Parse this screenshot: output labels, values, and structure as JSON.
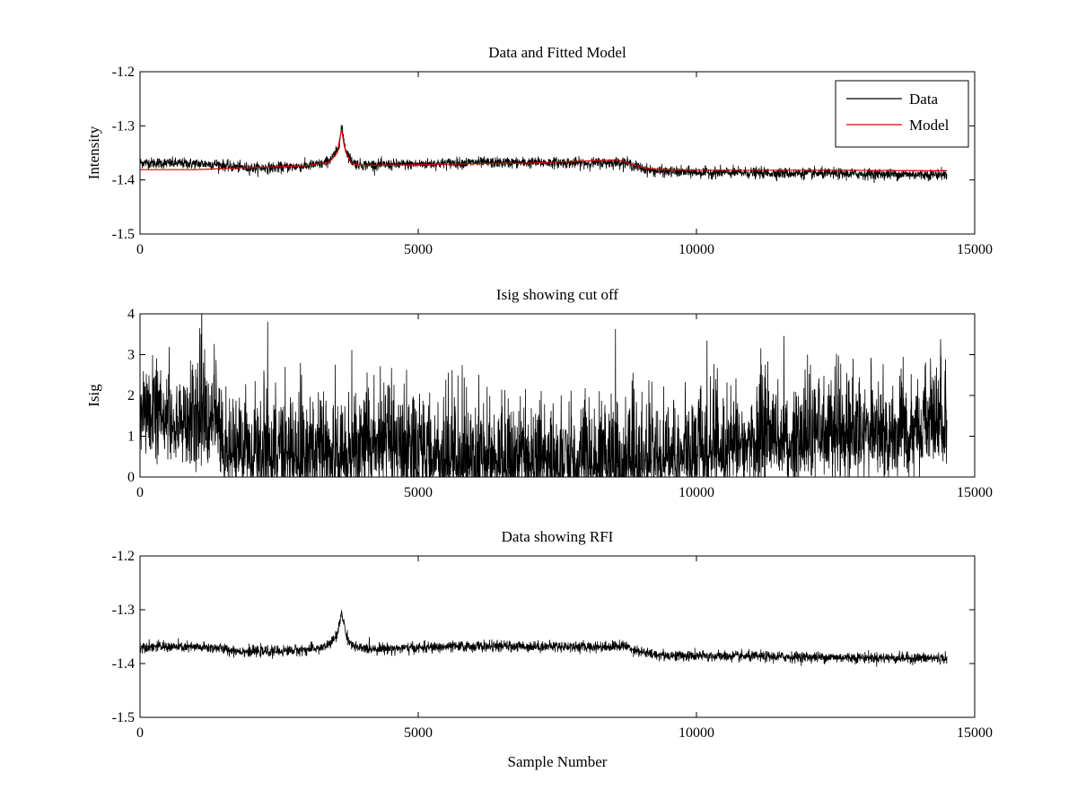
{
  "figure_title": "",
  "chart_data": [
    {
      "type": "line",
      "title": "Data and Fitted Model",
      "xlabel": "",
      "ylabel": "Intensity",
      "xlim": [
        0,
        15000
      ],
      "ylim": [
        -1.5,
        -1.2
      ],
      "xticks": [
        0,
        5000,
        10000,
        15000
      ],
      "xtick_labels": [
        "0",
        "5000",
        "10000",
        "15000"
      ],
      "yticks": [
        -1.5,
        -1.4,
        -1.3,
        -1.2
      ],
      "ytick_labels": [
        "-1.5",
        "-1.4",
        "-1.3",
        "-1.2"
      ],
      "grid": false,
      "legend_position": "top-right",
      "series": [
        {
          "name": "Data",
          "color": "#000000",
          "noise": 0.005,
          "x": [
            0,
            500,
            1000,
            1400,
            1600,
            2000,
            2500,
            3000,
            3300,
            3450,
            3550,
            3600,
            3620,
            3650,
            3700,
            3800,
            3900,
            4000,
            4500,
            5000,
            5500,
            6000,
            6500,
            7000,
            7500,
            8000,
            8500,
            8700,
            9000,
            9200,
            9500,
            10000,
            11000,
            12000,
            13000,
            14000,
            14500
          ],
          "values": [
            -1.368,
            -1.369,
            -1.37,
            -1.371,
            -1.375,
            -1.378,
            -1.377,
            -1.374,
            -1.37,
            -1.36,
            -1.345,
            -1.32,
            -1.302,
            -1.318,
            -1.345,
            -1.365,
            -1.371,
            -1.372,
            -1.372,
            -1.371,
            -1.369,
            -1.368,
            -1.368,
            -1.368,
            -1.368,
            -1.369,
            -1.368,
            -1.367,
            -1.378,
            -1.383,
            -1.385,
            -1.386,
            -1.387,
            -1.388,
            -1.389,
            -1.39,
            -1.39
          ]
        },
        {
          "name": "Model",
          "color": "#e00000",
          "noise": 0,
          "x": [
            0,
            1000,
            1500,
            2000,
            3000,
            3400,
            3550,
            3620,
            3680,
            3800,
            4000,
            5000,
            6000,
            7000,
            8000,
            8600,
            8800,
            9100,
            9500,
            10000,
            12000,
            14500
          ],
          "values": [
            -1.381,
            -1.381,
            -1.379,
            -1.377,
            -1.374,
            -1.367,
            -1.35,
            -1.303,
            -1.345,
            -1.37,
            -1.373,
            -1.372,
            -1.37,
            -1.369,
            -1.365,
            -1.363,
            -1.37,
            -1.379,
            -1.381,
            -1.382,
            -1.382,
            -1.383
          ]
        }
      ]
    },
    {
      "type": "line",
      "title": "Isig showing cut off",
      "xlabel": "",
      "ylabel": "Isig",
      "xlim": [
        0,
        15000
      ],
      "ylim": [
        0,
        4
      ],
      "xticks": [
        0,
        5000,
        10000,
        15000
      ],
      "xtick_labels": [
        "0",
        "5000",
        "10000",
        "15000"
      ],
      "yticks": [
        0,
        1,
        2,
        3,
        4
      ],
      "ytick_labels": [
        "0",
        "1",
        "2",
        "3",
        "4"
      ],
      "grid": false,
      "series": [
        {
          "name": "Isig",
          "color": "#000000",
          "noise": 0.55,
          "clip_min": 0,
          "x": [
            0,
            300,
            800,
            1400,
            1500,
            2500,
            3500,
            4500,
            5500,
            6500,
            7500,
            8500,
            9500,
            10500,
            11500,
            12500,
            13500,
            14500
          ],
          "values": [
            1.7,
            1.5,
            1.35,
            1.3,
            0.6,
            0.55,
            0.5,
            0.75,
            0.45,
            0.38,
            0.35,
            0.38,
            0.5,
            0.75,
            0.9,
            1.0,
            1.1,
            1.3
          ]
        }
      ]
    },
    {
      "type": "line",
      "title": "Data showing RFI",
      "xlabel": "Sample Number",
      "ylabel": "",
      "xlim": [
        0,
        15000
      ],
      "ylim": [
        -1.5,
        -1.2
      ],
      "xticks": [
        0,
        5000,
        10000,
        15000
      ],
      "xtick_labels": [
        "0",
        "5000",
        "10000",
        "15000"
      ],
      "yticks": [
        -1.5,
        -1.4,
        -1.3,
        -1.2
      ],
      "ytick_labels": [
        "-1.5",
        "-1.4",
        "-1.3",
        "-1.2"
      ],
      "grid": false,
      "series": [
        {
          "name": "Data",
          "color": "#000000",
          "noise": 0.005,
          "x": [
            0,
            500,
            1000,
            1400,
            1600,
            2000,
            2500,
            3000,
            3300,
            3450,
            3550,
            3600,
            3620,
            3650,
            3700,
            3800,
            3900,
            4000,
            4500,
            5000,
            5500,
            6000,
            6500,
            7000,
            7500,
            8000,
            8500,
            8700,
            9000,
            9200,
            9500,
            10000,
            11000,
            12000,
            13000,
            14000,
            14500
          ],
          "values": [
            -1.368,
            -1.369,
            -1.37,
            -1.371,
            -1.375,
            -1.378,
            -1.377,
            -1.374,
            -1.37,
            -1.36,
            -1.345,
            -1.32,
            -1.302,
            -1.318,
            -1.345,
            -1.365,
            -1.371,
            -1.372,
            -1.372,
            -1.371,
            -1.369,
            -1.368,
            -1.368,
            -1.368,
            -1.368,
            -1.369,
            -1.368,
            -1.367,
            -1.378,
            -1.383,
            -1.385,
            -1.386,
            -1.387,
            -1.388,
            -1.389,
            -1.39,
            -1.39
          ]
        }
      ]
    }
  ]
}
